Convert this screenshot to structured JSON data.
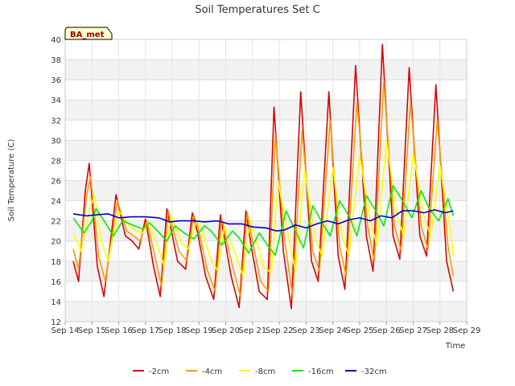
{
  "chart_data": {
    "type": "line",
    "title": "Soil Temperatures Set C",
    "xlabel": "Time",
    "ylabel": "Soil Temperature (C)",
    "badge": "BA_met",
    "xlim": [
      14,
      29
    ],
    "ylim": [
      12,
      40
    ],
    "x_ticks": [
      14,
      15,
      16,
      17,
      18,
      19,
      20,
      21,
      22,
      23,
      24,
      25,
      26,
      27,
      28,
      29
    ],
    "x_tick_labels": [
      "Sep 14",
      "Sep 15",
      "Sep 16",
      "Sep 17",
      "Sep 18",
      "Sep 19",
      "Sep 20",
      "Sep 21",
      "Sep 22",
      "Sep 23",
      "Sep 24",
      "Sep 25",
      "Sep 26",
      "Sep 27",
      "Sep 28",
      "Sep 29"
    ],
    "y_ticks": [
      12,
      14,
      16,
      18,
      20,
      22,
      24,
      26,
      28,
      30,
      32,
      34,
      36,
      38,
      40
    ],
    "grid": true,
    "legend_position": "bottom",
    "series": [
      {
        "name": "-2cm",
        "color": "#dd0000",
        "x": [
          14.3,
          14.5,
          14.75,
          14.9,
          15.2,
          15.45,
          15.9,
          16.25,
          16.5,
          16.75,
          17.0,
          17.3,
          17.55,
          17.8,
          18.2,
          18.5,
          18.75,
          18.95,
          19.25,
          19.55,
          19.8,
          20.2,
          20.5,
          20.75,
          20.95,
          21.25,
          21.55,
          21.8,
          22.15,
          22.45,
          22.8,
          23.2,
          23.45,
          23.85,
          24.2,
          24.45,
          24.85,
          25.25,
          25.5,
          25.85,
          26.25,
          26.5,
          26.85,
          27.25,
          27.5,
          27.85,
          28.25,
          28.5
        ],
        "y": [
          18.0,
          16.0,
          25.0,
          27.7,
          17.5,
          14.5,
          24.6,
          20.5,
          20.0,
          19.2,
          22.2,
          17.5,
          14.5,
          23.2,
          18.0,
          17.2,
          22.8,
          20.8,
          16.5,
          14.2,
          22.6,
          16.5,
          13.4,
          23.0,
          19.5,
          15.0,
          14.2,
          33.3,
          19.0,
          13.3,
          34.8,
          18.0,
          16.0,
          34.8,
          18.5,
          15.2,
          37.4,
          20.5,
          17.0,
          39.5,
          20.5,
          18.2,
          37.2,
          20.5,
          18.5,
          35.5,
          18.0,
          15.0
        ]
      },
      {
        "name": "-4cm",
        "color": "#ff9900",
        "x": [
          14.3,
          14.5,
          14.8,
          14.95,
          15.25,
          15.5,
          15.95,
          16.3,
          16.55,
          16.8,
          17.05,
          17.35,
          17.6,
          17.85,
          18.25,
          18.55,
          18.8,
          19.0,
          19.3,
          19.6,
          19.85,
          20.25,
          20.55,
          20.8,
          21.0,
          21.3,
          21.6,
          21.85,
          22.2,
          22.5,
          22.85,
          23.25,
          23.5,
          23.9,
          24.25,
          24.5,
          24.9,
          25.3,
          25.55,
          25.9,
          26.3,
          26.55,
          26.9,
          27.3,
          27.55,
          27.9,
          28.3,
          28.5
        ],
        "y": [
          19.2,
          17.2,
          24.5,
          26.4,
          18.5,
          16.0,
          24.0,
          21.0,
          20.5,
          20.0,
          22.0,
          18.5,
          15.5,
          23.0,
          19.0,
          18.0,
          22.6,
          21.0,
          17.2,
          15.0,
          22.2,
          17.5,
          14.5,
          22.8,
          20.0,
          16.0,
          15.0,
          30.5,
          20.0,
          14.5,
          31.0,
          19.0,
          17.0,
          32.0,
          19.5,
          16.5,
          33.8,
          21.5,
          18.0,
          35.8,
          21.5,
          19.0,
          33.8,
          21.5,
          19.2,
          32.0,
          19.5,
          16.5
        ]
      },
      {
        "name": "-8cm",
        "color": "#ffff00",
        "x": [
          14.3,
          14.6,
          14.95,
          15.1,
          15.35,
          15.6,
          16.0,
          16.4,
          16.65,
          16.9,
          17.1,
          17.45,
          17.7,
          17.95,
          18.35,
          18.6,
          18.9,
          19.1,
          19.4,
          19.7,
          19.95,
          20.35,
          20.65,
          20.9,
          21.1,
          21.4,
          21.7,
          21.95,
          22.3,
          22.6,
          22.95,
          23.35,
          23.6,
          24.0,
          24.35,
          24.6,
          25.0,
          25.4,
          25.65,
          26.0,
          26.4,
          26.65,
          27.0,
          27.4,
          27.65,
          28.0,
          28.4,
          28.5
        ],
        "y": [
          20.8,
          19.0,
          23.5,
          24.5,
          20.0,
          18.0,
          23.0,
          21.5,
          21.0,
          20.8,
          21.8,
          19.5,
          17.5,
          22.5,
          19.8,
          19.2,
          22.0,
          21.2,
          18.5,
          17.0,
          21.5,
          18.8,
          16.5,
          22.0,
          20.5,
          17.5,
          16.8,
          26.0,
          21.0,
          17.0,
          27.0,
          20.2,
          18.5,
          27.3,
          20.5,
          18.5,
          28.5,
          22.0,
          19.5,
          30.0,
          22.5,
          20.5,
          28.7,
          22.5,
          20.5,
          27.5,
          21.0,
          18.5
        ]
      },
      {
        "name": "-16cm",
        "color": "#00ee00",
        "x": [
          14.3,
          14.7,
          15.0,
          15.15,
          15.5,
          15.8,
          16.15,
          16.6,
          16.9,
          17.15,
          17.45,
          17.8,
          18.1,
          18.45,
          18.8,
          19.2,
          19.45,
          19.85,
          20.25,
          20.5,
          20.85,
          21.25,
          21.55,
          21.85,
          22.25,
          22.6,
          22.9,
          23.25,
          23.6,
          23.9,
          24.25,
          24.6,
          24.9,
          25.25,
          25.6,
          25.9,
          26.25,
          26.6,
          26.95,
          27.3,
          27.6,
          27.95,
          28.3,
          28.5
        ],
        "y": [
          22.3,
          20.8,
          22.0,
          23.2,
          21.8,
          20.5,
          22.0,
          21.5,
          21.2,
          21.8,
          21.0,
          20.0,
          21.5,
          20.8,
          20.2,
          21.5,
          21.0,
          19.6,
          21.0,
          20.3,
          18.8,
          20.8,
          19.6,
          18.6,
          23.0,
          21.0,
          19.3,
          23.5,
          21.8,
          20.5,
          24.0,
          22.5,
          20.5,
          24.5,
          23.0,
          21.5,
          25.5,
          24.0,
          22.3,
          25.0,
          23.2,
          22.0,
          24.2,
          22.5
        ]
      },
      {
        "name": "-32cm",
        "color": "#0000cc",
        "x": [
          14.3,
          14.8,
          15.2,
          15.6,
          16.0,
          16.5,
          17.0,
          17.5,
          17.9,
          18.3,
          18.8,
          19.2,
          19.7,
          20.1,
          20.6,
          21.0,
          21.5,
          21.9,
          22.2,
          22.6,
          23.0,
          23.4,
          23.8,
          24.2,
          24.6,
          25.0,
          25.4,
          25.8,
          26.2,
          26.6,
          27.0,
          27.4,
          27.8,
          28.2,
          28.5
        ],
        "y": [
          22.7,
          22.5,
          22.6,
          22.7,
          22.3,
          22.4,
          22.4,
          22.3,
          21.9,
          22.0,
          22.0,
          21.9,
          22.0,
          21.7,
          21.7,
          21.4,
          21.3,
          21.0,
          21.1,
          21.6,
          21.3,
          21.7,
          22.0,
          21.7,
          22.1,
          22.3,
          22.0,
          22.5,
          22.3,
          23.0,
          23.0,
          22.8,
          23.1,
          22.8,
          23.0
        ]
      }
    ]
  }
}
